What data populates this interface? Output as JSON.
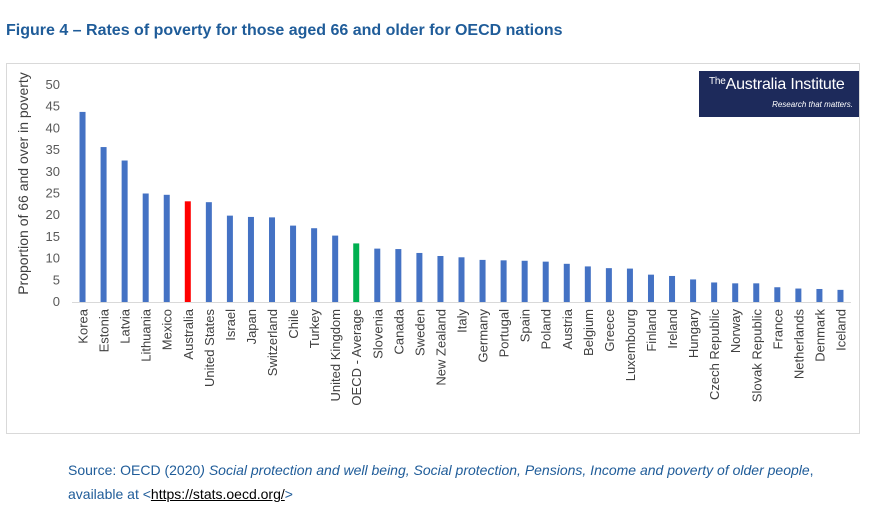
{
  "figure_title": "Figure 4 – Rates of poverty for those aged 66 and older for OECD nations",
  "logo": {
    "the": "The",
    "name": "Australia Institute",
    "tagline": "Research that matters."
  },
  "source": {
    "prefix": "Source: OECD (2020",
    "title": ") Social protection and well being, Social protection, Pensions, Income and poverty of older people",
    "middle": ", available at <",
    "link_text": "https://stats.oecd.org/",
    "suffix": ">"
  },
  "colors": {
    "default_bar": "#4472c4",
    "australia_bar": "#ff0000",
    "oecd_average_bar": "#00b050",
    "title": "#1f5c99",
    "logo_bg": "#1d2a5b"
  },
  "chart_data": {
    "type": "bar",
    "title": "",
    "xlabel": "",
    "ylabel": "Proportion of 66 and over in poverty",
    "ylim": [
      0,
      50
    ],
    "yticks": [
      0,
      5,
      10,
      15,
      20,
      25,
      30,
      35,
      40,
      45,
      50
    ],
    "grid": false,
    "categories": [
      "Korea",
      "Estonia",
      "Latvia",
      "Lithuania",
      "Mexico",
      "Australia",
      "United States",
      "Israel",
      "Japan",
      "Switzerland",
      "Chile",
      "Turkey",
      "United Kingdom",
      "OECD - Average",
      "Slovenia",
      "Canada",
      "Sweden",
      "New Zealand",
      "Italy",
      "Germany",
      "Portugal",
      "Spain",
      "Poland",
      "Austria",
      "Belgium",
      "Greece",
      "Luxembourg",
      "Finland",
      "Ireland",
      "Hungary",
      "Czech Republic",
      "Norway",
      "Slovak Republic",
      "France",
      "Netherlands",
      "Denmark",
      "Iceland"
    ],
    "values": [
      43.8,
      35.7,
      32.6,
      25.0,
      24.7,
      23.2,
      23.0,
      19.9,
      19.6,
      19.5,
      17.6,
      17.0,
      15.3,
      13.5,
      12.3,
      12.2,
      11.3,
      10.6,
      10.3,
      9.7,
      9.6,
      9.5,
      9.3,
      8.8,
      8.2,
      7.8,
      7.7,
      6.3,
      6.0,
      5.2,
      4.5,
      4.3,
      4.3,
      3.4,
      3.1,
      3.0,
      2.8
    ],
    "highlight": {
      "Australia": "#ff0000",
      "OECD - Average": "#00b050"
    }
  }
}
